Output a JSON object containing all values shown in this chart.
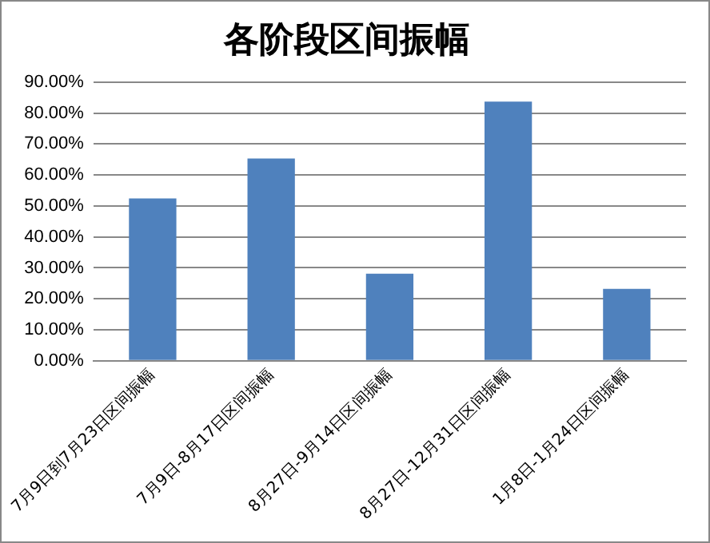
{
  "chart_data": {
    "type": "bar",
    "title": "各阶段区间振幅",
    "categories": [
      "7月9日到7月23日区间振幅",
      "7月9日-8月17日区间振幅",
      "8月27日-9月14日区间振幅",
      "8月27日-12月31日区间振幅",
      "1月8日-1月24日区间振幅"
    ],
    "values": [
      52.4,
      65.3,
      28.1,
      83.7,
      23.2
    ],
    "color": "#4f81bd",
    "ylim": [
      0,
      90
    ],
    "yticks": [
      {
        "value": 0,
        "label": "0.00%"
      },
      {
        "value": 10,
        "label": "10.00%"
      },
      {
        "value": 20,
        "label": "20.00%"
      },
      {
        "value": 30,
        "label": "30.00%"
      },
      {
        "value": 40,
        "label": "40.00%"
      },
      {
        "value": 50,
        "label": "50.00%"
      },
      {
        "value": 60,
        "label": "60.00%"
      },
      {
        "value": 70,
        "label": "70.00%"
      },
      {
        "value": 80,
        "label": "80.00%"
      },
      {
        "value": 90,
        "label": "90.00%"
      }
    ],
    "grid": "y",
    "legend": false
  }
}
